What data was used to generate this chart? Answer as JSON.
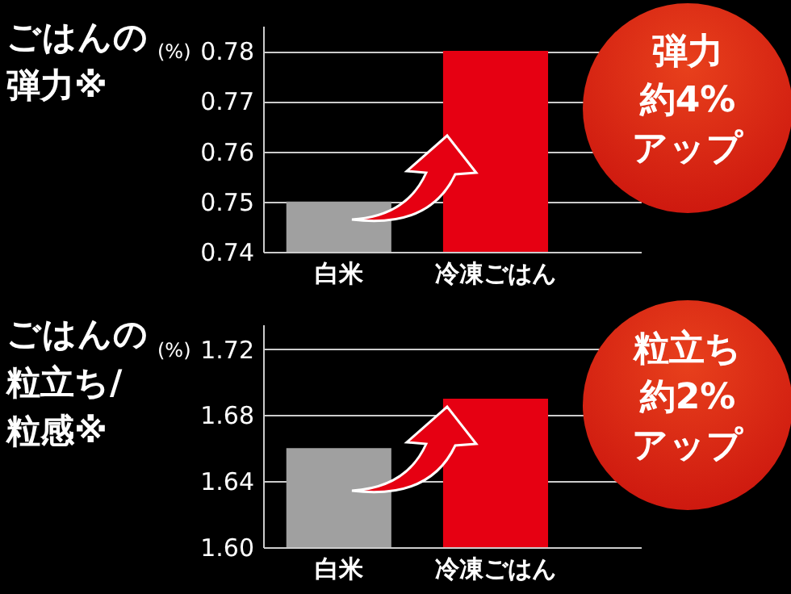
{
  "chart_data": [
    {
      "type": "bar",
      "title": "ごはんの弾力※",
      "ylabel": "(%)",
      "categories": [
        "白米",
        "冷凍ごはん"
      ],
      "values": [
        0.75,
        0.78
      ],
      "colors": [
        "#a0a0a0",
        "#e60012"
      ],
      "ylim": [
        0.74,
        0.785
      ],
      "yticks": [
        0.74,
        0.75,
        0.76,
        0.77,
        0.78
      ],
      "grid": "y",
      "annotations": [
        "弾力",
        "約4%",
        "アップ"
      ]
    },
    {
      "type": "bar",
      "title": "ごはんの粒立ち/粒感※",
      "ylabel": "(%)",
      "categories": [
        "白米",
        "冷凍ごはん"
      ],
      "values": [
        1.66,
        1.69
      ],
      "colors": [
        "#a0a0a0",
        "#e60012"
      ],
      "ylim": [
        1.6,
        1.735
      ],
      "yticks": [
        {
          "value": 1.6,
          "label": "1.60"
        },
        1.64,
        1.68,
        1.72
      ],
      "grid": "y",
      "annotations": [
        "粒立ち",
        "約2%",
        "アップ"
      ]
    }
  ]
}
